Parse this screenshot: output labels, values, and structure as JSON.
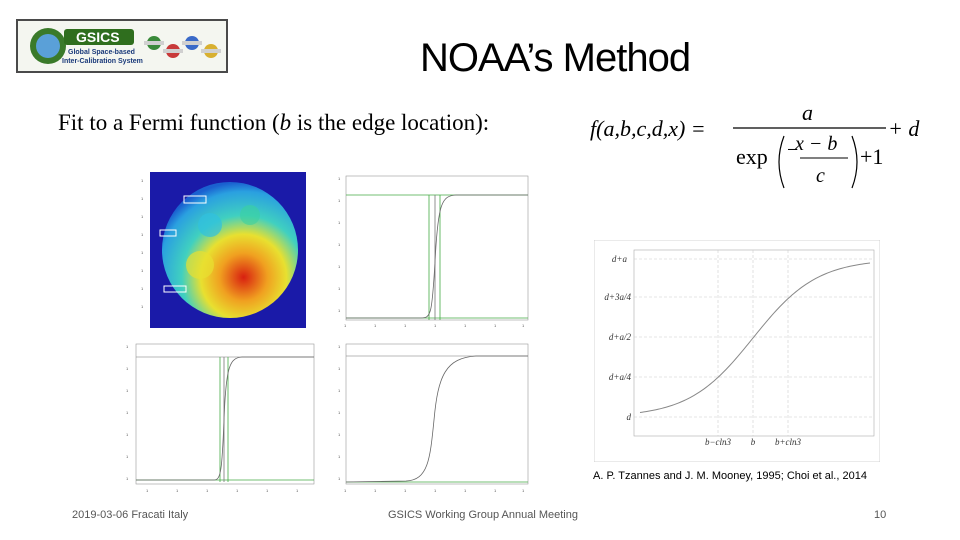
{
  "slide": {
    "title": "NOAA’s Method",
    "fit_prefix": "Fit to a Fermi function (",
    "fit_var": "b",
    "fit_suffix": " is the edge location):",
    "citation": "A. P. Tzannes and J. M. Mooney, 1995; Choi et al., 2014"
  },
  "logo": {
    "name": "GSICS",
    "line1": "Global Space-based",
    "line2": "Inter-Calibration System"
  },
  "formula": {
    "lhs": "f(a,b,c,d,x) =",
    "numerator": "a",
    "exp": "exp",
    "inner_num": "x − b",
    "inner_den": "c",
    "plus_one": "+1",
    "plus_d": "+ d"
  },
  "fermi_chart": {
    "y_ticks": [
      "d+a",
      "d+3a/4",
      "d+a/2",
      "d+a/4",
      "d"
    ],
    "x_ticks": [
      "b−cln3",
      "b",
      "b+cln3"
    ]
  },
  "footer": {
    "date": "2019-03-06 Fracati Italy",
    "meeting": "GSICS Working Group Annual Meeting",
    "page": "10"
  },
  "colors": {
    "moon_blue": "#1a1aa8",
    "curve": "#888888",
    "green_line": "#44aa44"
  }
}
